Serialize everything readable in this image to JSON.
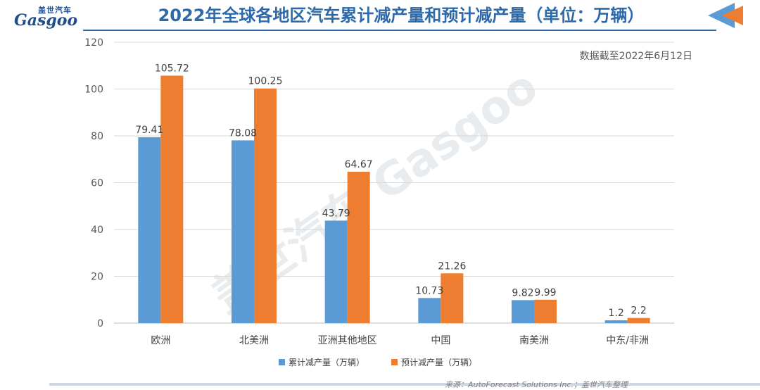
{
  "header": {
    "logo_cn": "盖世汽车",
    "logo_en": "Gasgoo",
    "title": "2022年全球各地区汽车累计减产量和预计减产量（单位：万辆）"
  },
  "note": "数据截至2022年6月12日",
  "source": "来源：AutoForecast Solutions Inc.；盖世汽车整理",
  "watermark": "盖世汽车 Gasgoo",
  "colors": {
    "series1": "#5b9bd5",
    "series2": "#ed7d31",
    "title": "#2e6aa8"
  },
  "chart_data": {
    "type": "bar",
    "categories": [
      "欧洲",
      "北美洲",
      "亚洲其他地区",
      "中国",
      "南美洲",
      "中东/非洲"
    ],
    "series": [
      {
        "name": "累计减产量（万辆）",
        "values": [
          79.41,
          78.08,
          43.79,
          10.73,
          9.82,
          1.2
        ]
      },
      {
        "name": "预计减产量（万辆）",
        "values": [
          105.72,
          100.25,
          64.67,
          21.26,
          9.99,
          2.2
        ]
      }
    ],
    "value_labels": [
      [
        "79.41",
        "78.08",
        "43.79",
        "10.73",
        "9.82",
        "1.2"
      ],
      [
        "105.72",
        "100.25",
        "64.67",
        "21.26",
        "9.99",
        "2.2"
      ]
    ],
    "y_ticks": [
      0,
      20,
      40,
      60,
      80,
      100,
      120
    ],
    "ylim": [
      0,
      120
    ],
    "grid": true,
    "legend_position": "bottom"
  }
}
